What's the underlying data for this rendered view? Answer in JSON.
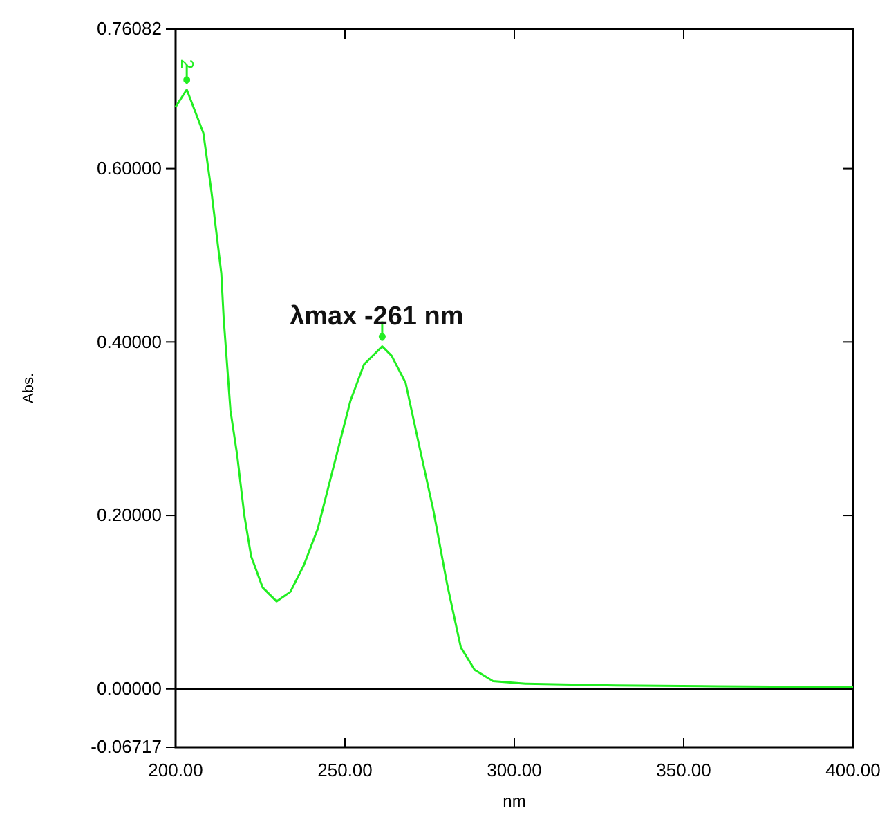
{
  "chart_data": {
    "type": "line",
    "xlabel": "nm",
    "ylabel": "Abs.",
    "x": [
      200,
      203.3,
      208.2,
      210.6,
      213.5,
      214.2,
      216.2,
      218.2,
      220.3,
      222.3,
      225.7,
      229.8,
      233.9,
      237.9,
      242,
      246.1,
      251.6,
      255.6,
      261,
      263.8,
      267.9,
      272,
      276.1,
      280.1,
      284.2,
      288.3,
      293.7,
      303.3,
      330,
      360,
      400
    ],
    "series": [
      {
        "color": "#22ee22",
        "values": [
          0.671,
          0.691,
          0.641,
          0.573,
          0.479,
          0.427,
          0.321,
          0.269,
          0.2,
          0.153,
          0.117,
          0.101,
          0.112,
          0.143,
          0.185,
          0.248,
          0.332,
          0.374,
          0.395,
          0.384,
          0.353,
          0.279,
          0.206,
          0.122,
          0.048,
          0.022,
          0.009,
          0.006,
          0.004,
          0.003,
          0.002
        ]
      }
    ],
    "xlim": [
      200,
      400
    ],
    "xticks": [
      {
        "value": 200,
        "label": "200.00"
      },
      {
        "value": 250,
        "label": "250.00"
      },
      {
        "value": 300,
        "label": "300.00"
      },
      {
        "value": 350,
        "label": "350.00"
      },
      {
        "value": 400,
        "label": "400.00"
      }
    ],
    "ylim": [
      -0.06717,
      0.76082
    ],
    "yticks": [
      -0.06717,
      {
        "value": 0,
        "label": "0.00000"
      },
      {
        "value": 0.2,
        "label": "0.20000"
      },
      {
        "value": 0.4,
        "label": "0.40000"
      },
      {
        "value": 0.6,
        "label": "0.60000"
      },
      0.76082
    ],
    "ref_lines": [
      {
        "axis": "y",
        "value": 0,
        "label": null,
        "color": "#000000"
      }
    ],
    "annotations": [
      {
        "text": "2",
        "x": 203.3,
        "y": 0.691
      },
      {
        "text": "λmax -261 nm",
        "x": 261,
        "y": 0.395
      }
    ],
    "grid": false,
    "marker": "none",
    "line_style": "solid"
  }
}
